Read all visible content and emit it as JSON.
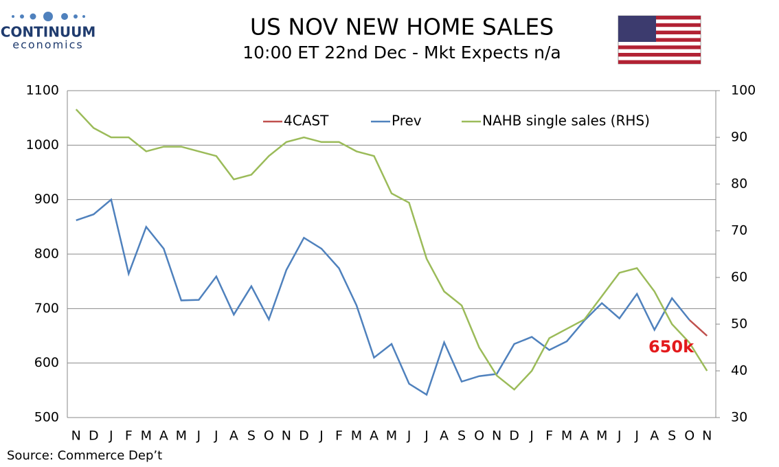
{
  "chart_data": {
    "type": "line",
    "title": "US NOV NEW HOME SALES",
    "subtitle": "10:00 ET 22nd Dec - Mkt Expects n/a",
    "brand": "CONTINUUM",
    "brand_sub": "economics",
    "source": "Source: Commerce Dep’t",
    "annotation": "650k",
    "categories": [
      "N",
      "D",
      "J",
      "F",
      "M",
      "A",
      "M",
      "J",
      "J",
      "A",
      "S",
      "O",
      "N",
      "D",
      "J",
      "F",
      "M",
      "A",
      "M",
      "J",
      "J",
      "A",
      "S",
      "O",
      "N",
      "D",
      "J",
      "F",
      "M",
      "A",
      "M",
      "J",
      "J",
      "A",
      "S",
      "O",
      "N"
    ],
    "series": [
      {
        "name": "4CAST",
        "color": "#c0504d",
        "values": [
          null,
          null,
          null,
          null,
          null,
          null,
          null,
          null,
          null,
          null,
          null,
          null,
          null,
          null,
          null,
          null,
          null,
          null,
          null,
          null,
          null,
          null,
          null,
          null,
          null,
          null,
          null,
          null,
          null,
          null,
          null,
          null,
          null,
          null,
          null,
          679,
          650
        ]
      },
      {
        "name": "Prev",
        "color": "#4f81bd",
        "values": [
          862,
          873,
          900,
          764,
          850,
          810,
          715,
          716,
          759,
          689,
          741,
          680,
          771,
          830,
          810,
          774,
          706,
          610,
          635,
          562,
          542,
          638,
          566,
          576,
          580,
          635,
          648,
          624,
          640,
          678,
          710,
          682,
          727,
          661,
          719,
          679,
          null
        ]
      },
      {
        "name": "NAHB single sales (RHS)",
        "color": "#9bbb59",
        "axis": "y2",
        "values": [
          96,
          92,
          90,
          90,
          87,
          88,
          88,
          87,
          86,
          81,
          82,
          86,
          89,
          90,
          89,
          89,
          87,
          86,
          78,
          76,
          64,
          57,
          54,
          45,
          39,
          36,
          40,
          47,
          49,
          51,
          56,
          61,
          62,
          57,
          50,
          46,
          40
        ]
      }
    ],
    "ylim": [
      500,
      1100
    ],
    "yticks": [
      500,
      600,
      700,
      800,
      900,
      1000,
      1100
    ],
    "y2lim": [
      30,
      100
    ],
    "y2ticks": [
      30,
      40,
      50,
      60,
      70,
      80,
      90,
      100
    ],
    "grid": true
  }
}
